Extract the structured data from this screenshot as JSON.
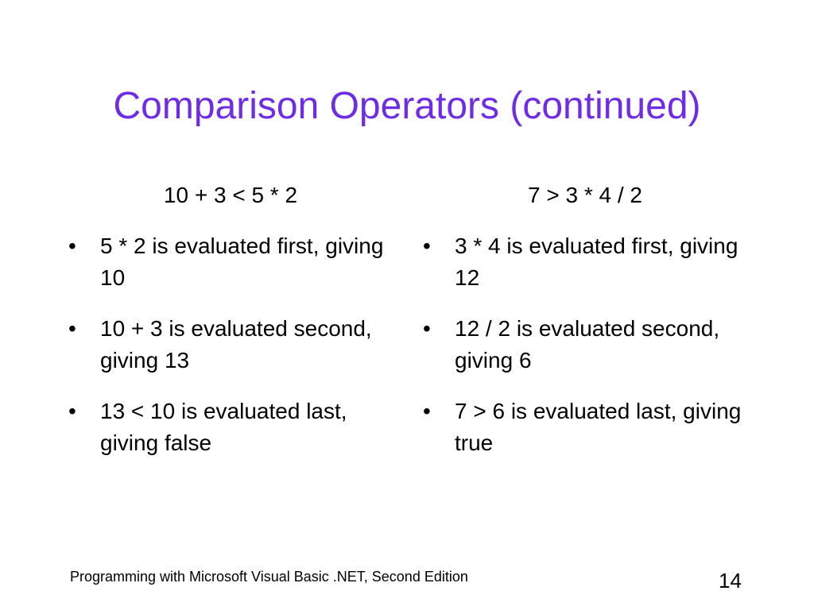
{
  "slide": {
    "title": "Comparison Operators (continued)",
    "title_color": "#6f2ce6",
    "bullet_glyph": "•",
    "left": {
      "expression": "10 + 3 < 5 * 2",
      "bullets": [
        {
          "text": "5 * 2 is evaluated first, giving 10"
        },
        {
          "text": "10 + 3 is evaluated second, giving 13"
        },
        {
          "text": "13 < 10 is evaluated last, giving false"
        }
      ]
    },
    "right": {
      "expression": "7 > 3 * 4 / 2",
      "bullets": [
        {
          "text": "3 * 4 is evaluated first, giving 12"
        },
        {
          "text": "12 / 2 is evaluated second, giving 6"
        },
        {
          "text": "7 > 6 is evaluated last, giving true"
        }
      ]
    },
    "footer": "Programming with Microsoft Visual Basic .NET, Second Edition",
    "page_number": "14"
  }
}
